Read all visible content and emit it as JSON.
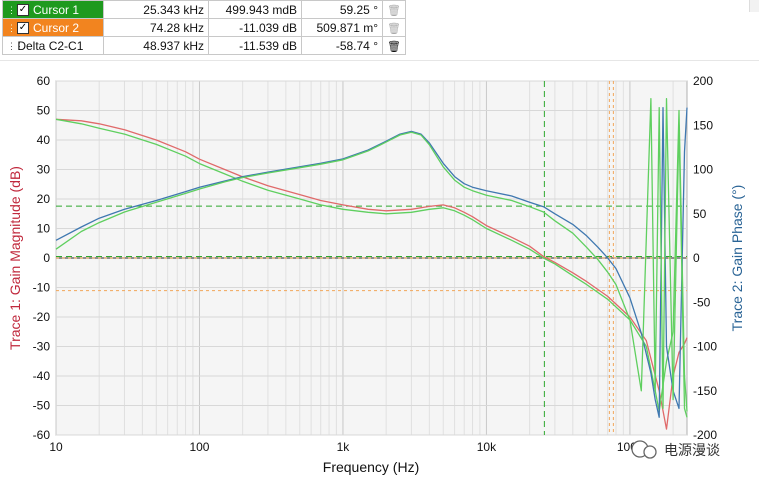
{
  "cursors": [
    {
      "name": "Cursor 1",
      "checked": true,
      "frequency": "25.343 kHz",
      "magnitude": "499.943 mdB",
      "phase": "59.25 °",
      "color": "#1e9a1e"
    },
    {
      "name": "Cursor 2",
      "checked": true,
      "frequency": "74.28 kHz",
      "magnitude": "-11.039 dB",
      "phase": "509.871 m°",
      "color": "#f2841f"
    },
    {
      "name": "Delta C2-C1",
      "frequency": "48.937 kHz",
      "magnitude": "-11.539 dB",
      "phase": "-58.74 °"
    }
  ],
  "watermark": "电源漫谈",
  "chart_data": {
    "type": "line",
    "xlabel": "Frequency (Hz)",
    "ylabel_left": "Trace 1: Gain Magnitude (dB)",
    "ylabel_right": "Trace 2: Gain Phase (°)",
    "x_scale": "log",
    "xlim": [
      10,
      250000
    ],
    "ylim_left": [
      -60,
      60
    ],
    "ylim_right": [
      -200,
      200
    ],
    "x_tick_labels": [
      "10",
      "100",
      "1k",
      "10k",
      "100k"
    ],
    "x_ticks": [
      10,
      100,
      1000,
      10000,
      100000
    ],
    "y_left_ticks": [
      60,
      50,
      40,
      30,
      20,
      10,
      0,
      -10,
      -20,
      -30,
      -40,
      -50,
      -60
    ],
    "y_right_ticks": [
      200,
      150,
      100,
      50,
      0,
      -50,
      -100,
      -150,
      -200
    ],
    "grid": true,
    "colors": {
      "magnitude": "#e06a6a",
      "phase": "#3f78b0",
      "cursor1": "#2ea82e",
      "cursor2": "#f2a65a",
      "axis_left": "#c0283c",
      "axis_right": "#2a6496"
    },
    "cursor_lines": {
      "cursor1_freq": 25343,
      "cursor2_freq": 74280,
      "cursor1_mag": 0.5,
      "cursor2_mag": -11.04
    },
    "series": [
      {
        "axis": "left",
        "x": [
          10,
          15,
          20,
          30,
          50,
          80,
          100,
          150,
          200,
          300,
          500,
          700,
          1000,
          1500,
          2000,
          3000,
          4000,
          5000,
          6000,
          7000,
          8000,
          10000,
          15000,
          20000,
          25000,
          30000,
          40000,
          50000,
          70000,
          100000,
          130000,
          160000,
          180000,
          200000,
          220000,
          240000,
          250000
        ],
        "values": [
          47,
          46.5,
          45.5,
          43.5,
          40,
          36,
          33.5,
          30,
          27.5,
          24.5,
          21.5,
          19.5,
          18,
          16.5,
          16,
          16.5,
          17.5,
          18,
          17,
          15.5,
          14,
          11,
          7,
          4,
          0.5,
          -1.5,
          -5,
          -8,
          -13,
          -20,
          -28,
          -45,
          -58,
          -40,
          -32,
          -29,
          -27
        ]
      },
      {
        "axis": "left",
        "x": [
          10,
          15,
          20,
          30,
          50,
          80,
          100,
          150,
          200,
          300,
          500,
          700,
          1000,
          1500,
          2000,
          3000,
          4000,
          5000,
          6000,
          7000,
          8000,
          10000,
          15000,
          20000,
          25000,
          30000,
          40000,
          50000,
          70000,
          100000,
          130000,
          150000,
          160000,
          180000,
          200000,
          220000,
          240000,
          250000
        ],
        "values": [
          47,
          45.5,
          44,
          42,
          38.5,
          34.5,
          32,
          28.5,
          26,
          23,
          20,
          18,
          16.5,
          15.5,
          15,
          15.5,
          16.5,
          17,
          16,
          14.5,
          13,
          10,
          6,
          3,
          0,
          -2,
          -6,
          -9,
          -14,
          -21,
          -30,
          -45,
          -52,
          -35,
          -25,
          50,
          -40,
          -52
        ]
      },
      {
        "axis": "right",
        "x": [
          10,
          15,
          20,
          30,
          50,
          80,
          100,
          150,
          200,
          300,
          500,
          700,
          1000,
          1500,
          2000,
          2500,
          3000,
          3500,
          4000,
          5000,
          6000,
          7000,
          8000,
          10000,
          15000,
          20000,
          25000,
          30000,
          40000,
          50000,
          60000,
          70000,
          80000,
          100000,
          120000,
          140000,
          150000,
          160000,
          170000,
          180000,
          200000,
          220000,
          240000,
          250000
        ],
        "values": [
          20,
          35,
          45,
          55,
          65,
          75,
          80,
          87,
          92,
          97,
          103,
          107,
          112,
          122,
          132,
          140,
          143,
          140,
          130,
          107,
          92,
          84,
          80,
          76,
          70,
          63,
          58,
          50,
          38,
          25,
          12,
          0,
          -12,
          -45,
          -85,
          -130,
          -160,
          -180,
          170,
          -100,
          -150,
          -170,
          120,
          170
        ]
      },
      {
        "axis": "right",
        "x": [
          10,
          15,
          20,
          30,
          50,
          80,
          100,
          150,
          200,
          300,
          500,
          700,
          1000,
          1500,
          2000,
          2500,
          3000,
          3500,
          4000,
          5000,
          6000,
          7000,
          8000,
          10000,
          15000,
          20000,
          25000,
          30000,
          40000,
          50000,
          60000,
          70000,
          80000,
          100000,
          120000,
          140000,
          150000,
          160000,
          170000,
          180000,
          200000,
          220000,
          240000,
          250000
        ],
        "values": [
          10,
          30,
          40,
          52,
          63,
          73,
          78,
          86,
          91,
          96,
          102,
          106,
          111,
          121,
          131,
          139,
          142,
          139,
          128,
          103,
          88,
          80,
          76,
          71,
          65,
          58,
          52,
          42,
          28,
          12,
          -2,
          -16,
          -30,
          -70,
          -150,
          180,
          -150,
          170,
          -170,
          180,
          -160,
          150,
          -170,
          -180
        ]
      }
    ]
  }
}
